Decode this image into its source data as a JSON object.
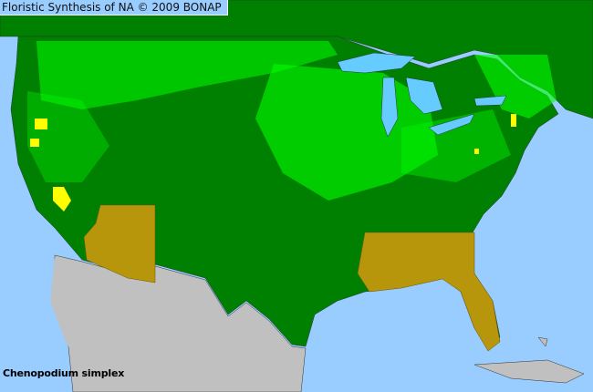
{
  "title": "Floristic Synthesis of NA © 2009 BONAP",
  "species": "Chenopodium simplex",
  "colors": {
    "water": "#99ccff",
    "present_county": "#00ff00",
    "present_state": "#008000",
    "native_absent_state": "#b8960c",
    "noxious_or_rare": "#ffff00",
    "not_in_range": "#c0c0c0"
  }
}
